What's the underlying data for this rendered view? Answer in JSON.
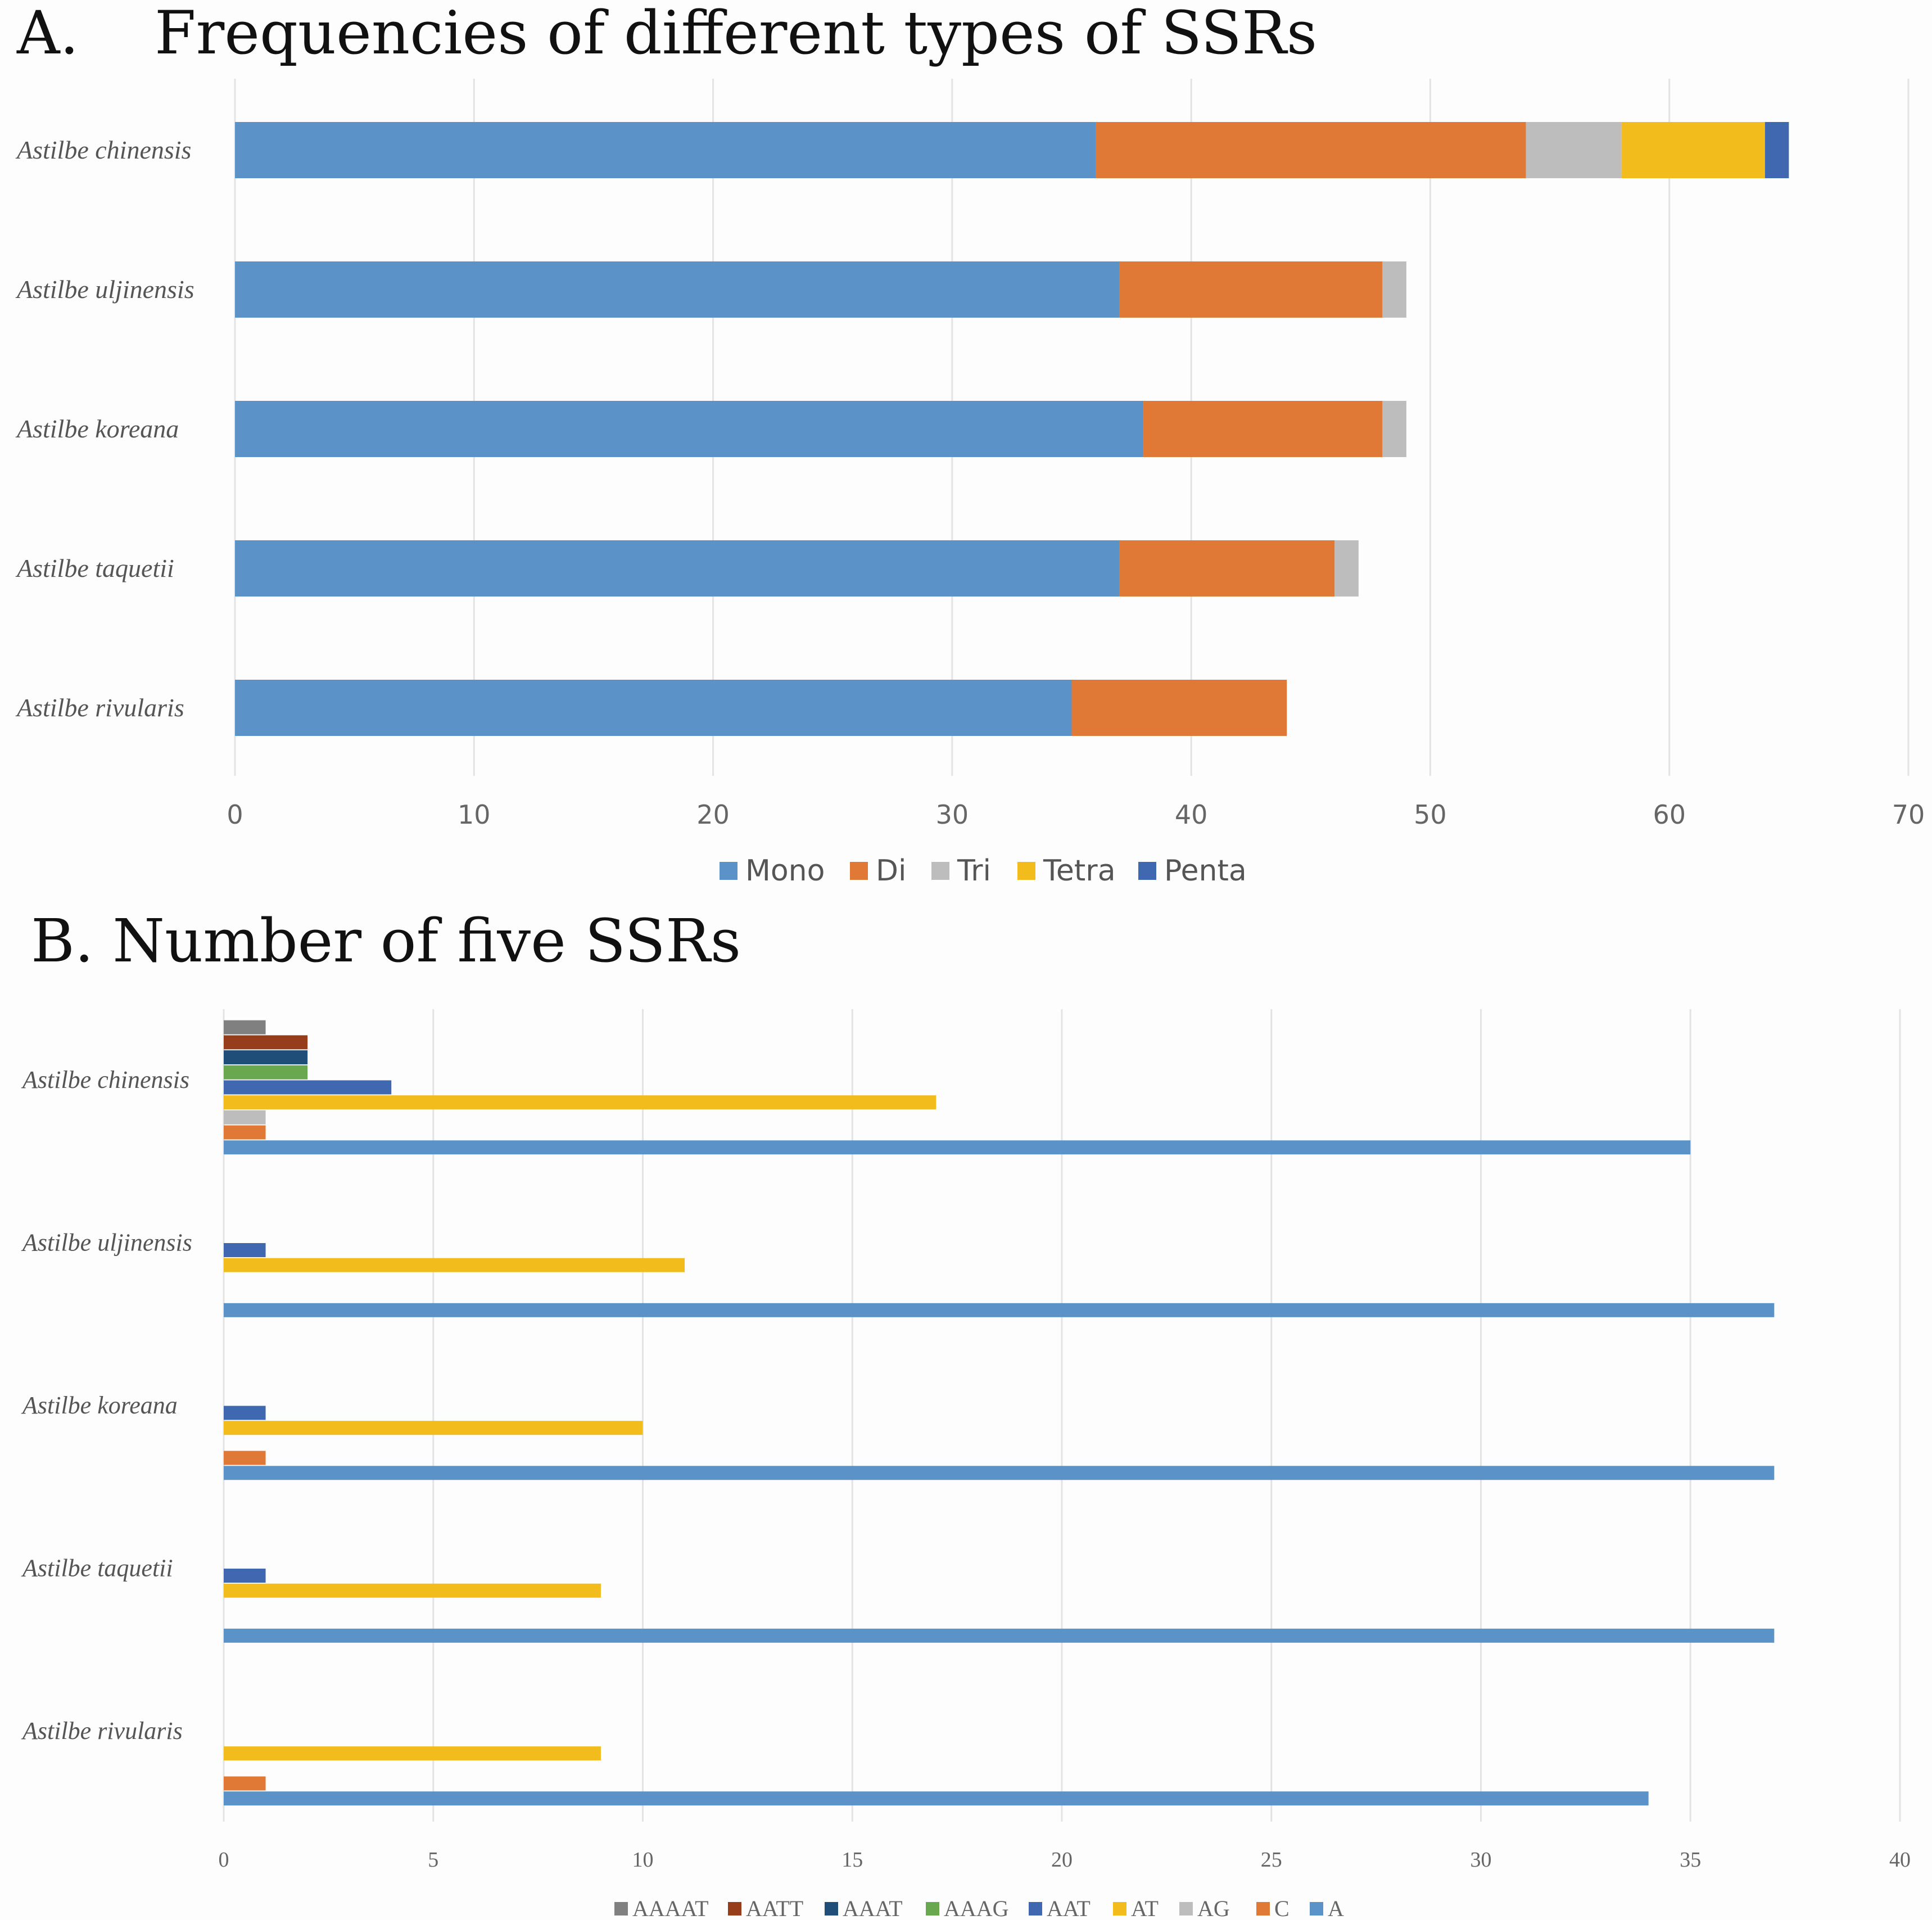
{
  "chart_data": [
    {
      "type": "bar",
      "orientation": "horizontal",
      "stacked": true,
      "title": "A.    Frequencies of different types of SSRs",
      "categories": [
        "Astilbe chinensis",
        "Astilbe uljinensis",
        "Astilbe koreana",
        "Astilbe taquetii",
        "Astilbe rivularis"
      ],
      "series": [
        {
          "name": "Mono",
          "color": "#5b93c8",
          "values": [
            36,
            37,
            38,
            37,
            35
          ]
        },
        {
          "name": "Di",
          "color": "#e07935",
          "values": [
            18,
            11,
            10,
            9,
            9
          ]
        },
        {
          "name": "Tri",
          "color": "#bdbdbd",
          "values": [
            4,
            1,
            1,
            1,
            0
          ]
        },
        {
          "name": "Tetra",
          "color": "#f2bc1c",
          "values": [
            6,
            0,
            0,
            0,
            0
          ]
        },
        {
          "name": "Penta",
          "color": "#3f68b0",
          "values": [
            1,
            0,
            0,
            0,
            0
          ]
        }
      ],
      "xlim": [
        0,
        70
      ],
      "xticks": [
        "0",
        "10",
        "20",
        "30",
        "40",
        "50",
        "60",
        "70"
      ],
      "grid": true,
      "legend": "bottom"
    },
    {
      "type": "bar",
      "orientation": "horizontal",
      "stacked": false,
      "title": "B. Number of five SSRs",
      "categories": [
        "Astilbe chinensis",
        "Astilbe uljinensis",
        "Astilbe koreana",
        "Astilbe taquetii",
        "Astilbe rivularis"
      ],
      "series": [
        {
          "name": "A",
          "color": "#5b93c8",
          "values": [
            35,
            37,
            37,
            37,
            34
          ]
        },
        {
          "name": "C",
          "color": "#e07935",
          "values": [
            1,
            0,
            1,
            0,
            1
          ]
        },
        {
          "name": "AG",
          "color": "#bdbdbd",
          "values": [
            1,
            0,
            0,
            0,
            0
          ]
        },
        {
          "name": "AT",
          "color": "#f2bc1c",
          "values": [
            17,
            11,
            10,
            9,
            9
          ]
        },
        {
          "name": "AAT",
          "color": "#3f68b0",
          "values": [
            4,
            1,
            1,
            1,
            0
          ]
        },
        {
          "name": "AAAG",
          "color": "#6aa84f",
          "values": [
            2,
            0,
            0,
            0,
            0
          ]
        },
        {
          "name": "AAAT",
          "color": "#1f4e79",
          "values": [
            2,
            0,
            0,
            0,
            0
          ]
        },
        {
          "name": "AATT",
          "color": "#963d1b",
          "values": [
            2,
            0,
            0,
            0,
            0
          ]
        },
        {
          "name": "AAAAT",
          "color": "#808080",
          "values": [
            1,
            0,
            0,
            0,
            0
          ]
        }
      ],
      "legend_order": [
        "AAAAT",
        "AATT",
        "AAAT",
        "AAAG",
        "AAT",
        "AT",
        "AG",
        "C",
        "A"
      ],
      "xlim": [
        0,
        40
      ],
      "xticks": [
        "0",
        "5",
        "10",
        "15",
        "20",
        "25",
        "30",
        "35",
        "40"
      ],
      "grid": true,
      "legend": "bottom"
    }
  ]
}
